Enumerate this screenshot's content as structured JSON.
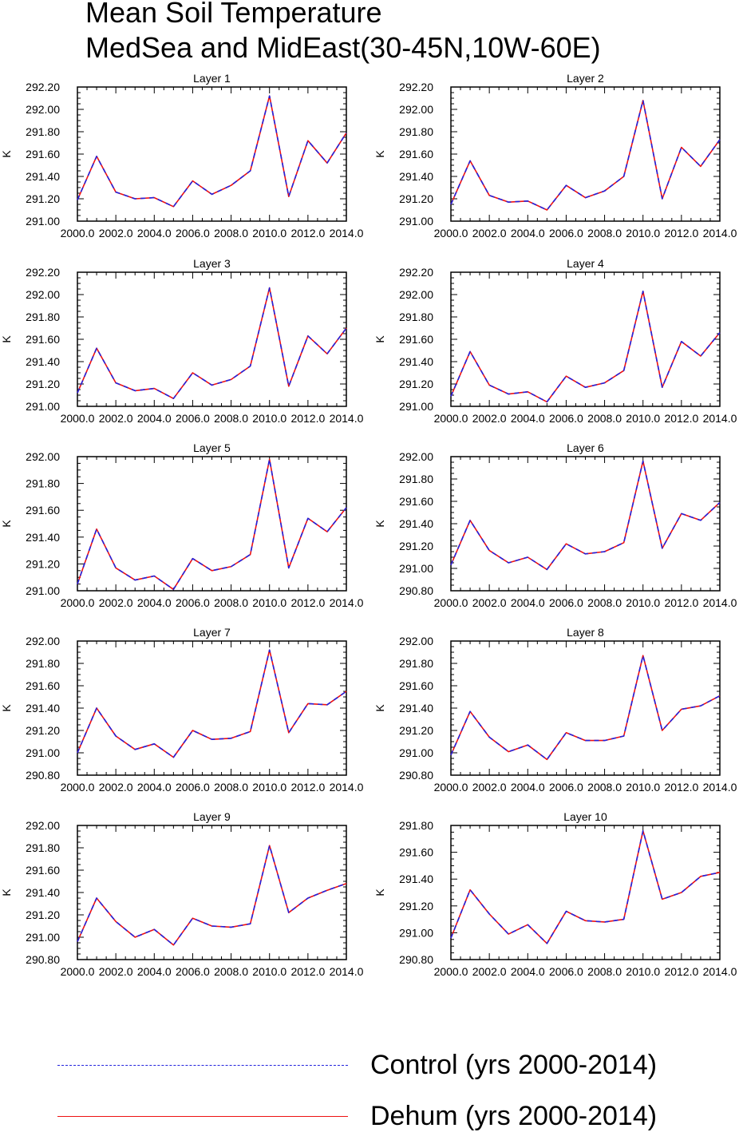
{
  "title": {
    "line1": "Mean Soil Temperature",
    "line2": "MedSea and MidEast(30-45N,10W-60E)"
  },
  "legend": [
    {
      "label": "Control (yrs 2000-2014)",
      "color": "#2222dd",
      "style": "dashed"
    },
    {
      "label": "Dehum (yrs 2000-2014)",
      "color": "#ee1111",
      "style": "solid"
    }
  ],
  "chart_data": [
    {
      "type": "line",
      "title": "Layer 1",
      "ylabel": "K",
      "x": [
        2000,
        2001,
        2002,
        2003,
        2004,
        2005,
        2006,
        2007,
        2008,
        2009,
        2010,
        2011,
        2012,
        2013,
        2014
      ],
      "xlim": [
        2000,
        2014
      ],
      "xticks": [
        "2000.0",
        "2002.0",
        "2004.0",
        "2006.0",
        "2008.0",
        "2010.0",
        "2012.0",
        "2014.0"
      ],
      "ylim": [
        291.0,
        292.2
      ],
      "yticks": [
        "291.00",
        "291.20",
        "291.40",
        "291.60",
        "291.80",
        "292.00",
        "292.20"
      ],
      "series": [
        {
          "name": "Control (yrs 2000-2014)",
          "values": [
            291.19,
            291.58,
            291.26,
            291.2,
            291.21,
            291.13,
            291.36,
            291.24,
            291.32,
            291.45,
            292.12,
            291.22,
            291.72,
            291.52,
            291.79
          ]
        },
        {
          "name": "Dehum (yrs 2000-2014)",
          "values": [
            291.19,
            291.58,
            291.26,
            291.2,
            291.21,
            291.13,
            291.36,
            291.24,
            291.32,
            291.45,
            292.12,
            291.22,
            291.72,
            291.52,
            291.79
          ]
        }
      ]
    },
    {
      "type": "line",
      "title": "Layer 2",
      "ylabel": "K",
      "x": [
        2000,
        2001,
        2002,
        2003,
        2004,
        2005,
        2006,
        2007,
        2008,
        2009,
        2010,
        2011,
        2012,
        2013,
        2014
      ],
      "xlim": [
        2000,
        2014
      ],
      "xticks": [
        "2000.0",
        "2002.0",
        "2004.0",
        "2006.0",
        "2008.0",
        "2010.0",
        "2012.0",
        "2014.0"
      ],
      "ylim": [
        291.0,
        292.2
      ],
      "yticks": [
        "291.00",
        "291.20",
        "291.40",
        "291.60",
        "291.80",
        "292.00",
        "292.20"
      ],
      "series": [
        {
          "name": "Control (yrs 2000-2014)",
          "values": [
            291.15,
            291.54,
            291.23,
            291.17,
            291.18,
            291.1,
            291.32,
            291.21,
            291.27,
            291.4,
            292.08,
            291.2,
            291.66,
            291.49,
            291.73
          ]
        },
        {
          "name": "Dehum (yrs 2000-2014)",
          "values": [
            291.15,
            291.54,
            291.23,
            291.17,
            291.18,
            291.1,
            291.32,
            291.21,
            291.27,
            291.4,
            292.08,
            291.2,
            291.66,
            291.49,
            291.73
          ]
        }
      ]
    },
    {
      "type": "line",
      "title": "Layer 3",
      "ylabel": "K",
      "x": [
        2000,
        2001,
        2002,
        2003,
        2004,
        2005,
        2006,
        2007,
        2008,
        2009,
        2010,
        2011,
        2012,
        2013,
        2014
      ],
      "xlim": [
        2000,
        2014
      ],
      "xticks": [
        "2000.0",
        "2002.0",
        "2004.0",
        "2006.0",
        "2008.0",
        "2010.0",
        "2012.0",
        "2014.0"
      ],
      "ylim": [
        291.0,
        292.2
      ],
      "yticks": [
        "291.00",
        "291.20",
        "291.40",
        "291.60",
        "291.80",
        "292.00",
        "292.20"
      ],
      "series": [
        {
          "name": "Control (yrs 2000-2014)",
          "values": [
            291.12,
            291.52,
            291.21,
            291.14,
            291.16,
            291.07,
            291.3,
            291.19,
            291.24,
            291.36,
            292.06,
            291.18,
            291.63,
            291.47,
            291.7
          ]
        },
        {
          "name": "Dehum (yrs 2000-2014)",
          "values": [
            291.12,
            291.52,
            291.21,
            291.14,
            291.16,
            291.07,
            291.3,
            291.19,
            291.24,
            291.36,
            292.06,
            291.18,
            291.63,
            291.47,
            291.7
          ]
        }
      ]
    },
    {
      "type": "line",
      "title": "Layer 4",
      "ylabel": "K",
      "x": [
        2000,
        2001,
        2002,
        2003,
        2004,
        2005,
        2006,
        2007,
        2008,
        2009,
        2010,
        2011,
        2012,
        2013,
        2014
      ],
      "xlim": [
        2000,
        2014
      ],
      "xticks": [
        "2000.0",
        "2002.0",
        "2004.0",
        "2006.0",
        "2008.0",
        "2010.0",
        "2012.0",
        "2014.0"
      ],
      "ylim": [
        291.0,
        292.2
      ],
      "yticks": [
        "291.00",
        "291.20",
        "291.40",
        "291.60",
        "291.80",
        "292.00",
        "292.20"
      ],
      "series": [
        {
          "name": "Control (yrs 2000-2014)",
          "values": [
            291.09,
            291.49,
            291.19,
            291.11,
            291.13,
            291.04,
            291.27,
            291.17,
            291.21,
            291.32,
            292.03,
            291.17,
            291.58,
            291.45,
            291.66
          ]
        },
        {
          "name": "Dehum (yrs 2000-2014)",
          "values": [
            291.09,
            291.49,
            291.19,
            291.11,
            291.13,
            291.04,
            291.27,
            291.17,
            291.21,
            291.32,
            292.03,
            291.17,
            291.58,
            291.45,
            291.66
          ]
        }
      ]
    },
    {
      "type": "line",
      "title": "Layer 5",
      "ylabel": "K",
      "x": [
        2000,
        2001,
        2002,
        2003,
        2004,
        2005,
        2006,
        2007,
        2008,
        2009,
        2010,
        2011,
        2012,
        2013,
        2014
      ],
      "xlim": [
        2000,
        2014
      ],
      "xticks": [
        "2000.0",
        "2002.0",
        "2004.0",
        "2006.0",
        "2008.0",
        "2010.0",
        "2012.0",
        "2014.0"
      ],
      "ylim": [
        291.0,
        292.0
      ],
      "yticks": [
        "291.00",
        "291.20",
        "291.40",
        "291.60",
        "291.80",
        "292.00"
      ],
      "series": [
        {
          "name": "Control (yrs 2000-2014)",
          "values": [
            291.05,
            291.46,
            291.17,
            291.08,
            291.11,
            291.01,
            291.24,
            291.15,
            291.18,
            291.27,
            291.98,
            291.17,
            291.54,
            291.44,
            291.62
          ]
        },
        {
          "name": "Dehum (yrs 2000-2014)",
          "values": [
            291.05,
            291.46,
            291.17,
            291.08,
            291.11,
            291.01,
            291.24,
            291.15,
            291.18,
            291.27,
            291.98,
            291.17,
            291.54,
            291.44,
            291.62
          ]
        }
      ]
    },
    {
      "type": "line",
      "title": "Layer 6",
      "ylabel": "K",
      "x": [
        2000,
        2001,
        2002,
        2003,
        2004,
        2005,
        2006,
        2007,
        2008,
        2009,
        2010,
        2011,
        2012,
        2013,
        2014
      ],
      "xlim": [
        2000,
        2014
      ],
      "xticks": [
        "2000.0",
        "2002.0",
        "2004.0",
        "2006.0",
        "2008.0",
        "2010.0",
        "2012.0",
        "2014.0"
      ],
      "ylim": [
        290.8,
        292.0
      ],
      "yticks": [
        "290.80",
        "291.00",
        "291.20",
        "291.40",
        "291.60",
        "291.80",
        "292.00"
      ],
      "series": [
        {
          "name": "Control (yrs 2000-2014)",
          "values": [
            291.03,
            291.43,
            291.16,
            291.05,
            291.1,
            290.99,
            291.22,
            291.13,
            291.15,
            291.23,
            291.96,
            291.18,
            291.49,
            291.43,
            291.59
          ]
        },
        {
          "name": "Dehum (yrs 2000-2014)",
          "values": [
            291.03,
            291.43,
            291.16,
            291.05,
            291.1,
            290.99,
            291.22,
            291.13,
            291.15,
            291.23,
            291.96,
            291.18,
            291.49,
            291.43,
            291.59
          ]
        }
      ]
    },
    {
      "type": "line",
      "title": "Layer 7",
      "ylabel": "K",
      "x": [
        2000,
        2001,
        2002,
        2003,
        2004,
        2005,
        2006,
        2007,
        2008,
        2009,
        2010,
        2011,
        2012,
        2013,
        2014
      ],
      "xlim": [
        2000,
        2014
      ],
      "xticks": [
        "2000.0",
        "2002.0",
        "2004.0",
        "2006.0",
        "2008.0",
        "2010.0",
        "2012.0",
        "2014.0"
      ],
      "ylim": [
        290.8,
        292.0
      ],
      "yticks": [
        "290.80",
        "291.00",
        "291.20",
        "291.40",
        "291.60",
        "291.80",
        "292.00"
      ],
      "series": [
        {
          "name": "Control (yrs 2000-2014)",
          "values": [
            291.0,
            291.4,
            291.15,
            291.03,
            291.08,
            290.96,
            291.2,
            291.12,
            291.13,
            291.19,
            291.92,
            291.18,
            291.44,
            291.43,
            291.55
          ]
        },
        {
          "name": "Dehum (yrs 2000-2014)",
          "values": [
            291.0,
            291.4,
            291.15,
            291.03,
            291.08,
            290.96,
            291.2,
            291.12,
            291.13,
            291.19,
            291.92,
            291.18,
            291.44,
            291.43,
            291.55
          ]
        }
      ]
    },
    {
      "type": "line",
      "title": "Layer 8",
      "ylabel": "K",
      "x": [
        2000,
        2001,
        2002,
        2003,
        2004,
        2005,
        2006,
        2007,
        2008,
        2009,
        2010,
        2011,
        2012,
        2013,
        2014
      ],
      "xlim": [
        2000,
        2014
      ],
      "xticks": [
        "2000.0",
        "2002.0",
        "2004.0",
        "2006.0",
        "2008.0",
        "2010.0",
        "2012.0",
        "2014.0"
      ],
      "ylim": [
        290.8,
        292.0
      ],
      "yticks": [
        "290.80",
        "291.00",
        "291.20",
        "291.40",
        "291.60",
        "291.80",
        "292.00"
      ],
      "series": [
        {
          "name": "Control (yrs 2000-2014)",
          "values": [
            290.98,
            291.37,
            291.14,
            291.01,
            291.07,
            290.94,
            291.18,
            291.11,
            291.11,
            291.15,
            291.87,
            291.2,
            291.39,
            291.42,
            291.51
          ]
        },
        {
          "name": "Dehum (yrs 2000-2014)",
          "values": [
            290.98,
            291.37,
            291.14,
            291.01,
            291.07,
            290.94,
            291.18,
            291.11,
            291.11,
            291.15,
            291.87,
            291.2,
            291.39,
            291.42,
            291.51
          ]
        }
      ]
    },
    {
      "type": "line",
      "title": "Layer 9",
      "ylabel": "K",
      "x": [
        2000,
        2001,
        2002,
        2003,
        2004,
        2005,
        2006,
        2007,
        2008,
        2009,
        2010,
        2011,
        2012,
        2013,
        2014
      ],
      "xlim": [
        2000,
        2014
      ],
      "xticks": [
        "2000.0",
        "2002.0",
        "2004.0",
        "2006.0",
        "2008.0",
        "2010.0",
        "2012.0",
        "2014.0"
      ],
      "ylim": [
        290.8,
        292.0
      ],
      "yticks": [
        "290.80",
        "291.00",
        "291.20",
        "291.40",
        "291.60",
        "291.80",
        "292.00"
      ],
      "series": [
        {
          "name": "Control (yrs 2000-2014)",
          "values": [
            290.96,
            291.35,
            291.14,
            291.0,
            291.07,
            290.93,
            291.17,
            291.1,
            291.09,
            291.12,
            291.82,
            291.22,
            291.35,
            291.42,
            291.48
          ]
        },
        {
          "name": "Dehum (yrs 2000-2014)",
          "values": [
            290.96,
            291.35,
            291.14,
            291.0,
            291.07,
            290.93,
            291.17,
            291.1,
            291.09,
            291.12,
            291.82,
            291.22,
            291.35,
            291.42,
            291.48
          ]
        }
      ]
    },
    {
      "type": "line",
      "title": "Layer 10",
      "ylabel": "K",
      "x": [
        2000,
        2001,
        2002,
        2003,
        2004,
        2005,
        2006,
        2007,
        2008,
        2009,
        2010,
        2011,
        2012,
        2013,
        2014
      ],
      "xlim": [
        2000,
        2014
      ],
      "xticks": [
        "2000.0",
        "2002.0",
        "2004.0",
        "2006.0",
        "2008.0",
        "2010.0",
        "2012.0",
        "2014.0"
      ],
      "ylim": [
        290.8,
        291.8
      ],
      "yticks": [
        "290.80",
        "291.00",
        "291.20",
        "291.40",
        "291.60",
        "291.80"
      ],
      "series": [
        {
          "name": "Control (yrs 2000-2014)",
          "values": [
            290.96,
            291.32,
            291.14,
            290.99,
            291.06,
            290.92,
            291.16,
            291.09,
            291.08,
            291.1,
            291.76,
            291.25,
            291.3,
            291.42,
            291.45
          ]
        },
        {
          "name": "Dehum (yrs 2000-2014)",
          "values": [
            290.96,
            291.32,
            291.14,
            290.99,
            291.06,
            290.92,
            291.16,
            291.09,
            291.08,
            291.1,
            291.76,
            291.25,
            291.3,
            291.42,
            291.45
          ]
        }
      ]
    }
  ]
}
